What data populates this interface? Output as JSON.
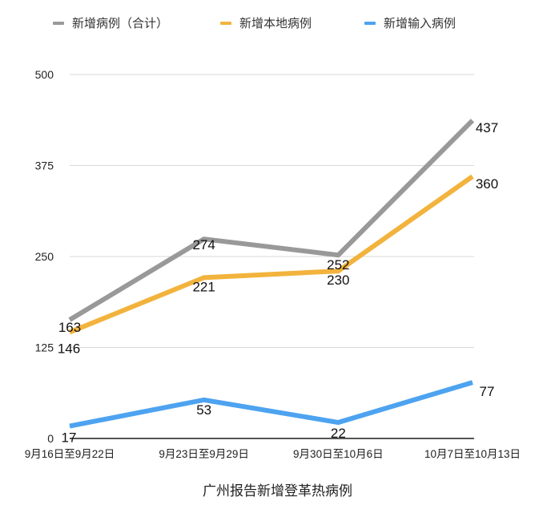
{
  "legend": {
    "items": [
      {
        "label": "新增病例（合计）",
        "color": "#999999"
      },
      {
        "label": "新增本地病例",
        "color": "#f2b33d"
      },
      {
        "label": "新增输入病例",
        "color": "#4da3f0"
      }
    ]
  },
  "title": "广州报告新增登革热病例",
  "chart_data": {
    "type": "line",
    "title": "广州报告新增登革热病例",
    "xlabel": "",
    "ylabel": "",
    "categories": [
      "9月16日至9月22日",
      "9月23日至9月29日",
      "9月30日至10月6日",
      "10月7日至10月13日"
    ],
    "series": [
      {
        "name": "新增病例（合计）",
        "color": "#999999",
        "values": [
          163,
          274,
          252,
          437
        ]
      },
      {
        "name": "新增本地病例",
        "color": "#f2b33d",
        "values": [
          146,
          221,
          230,
          360
        ]
      },
      {
        "name": "新增输入病例",
        "color": "#4da3f0",
        "values": [
          17,
          53,
          22,
          77
        ]
      }
    ],
    "yticks": [
      0,
      125,
      250,
      375,
      500
    ],
    "ylim": [
      0,
      500
    ],
    "grid": true,
    "legend_position": "top",
    "data_labels": true
  }
}
